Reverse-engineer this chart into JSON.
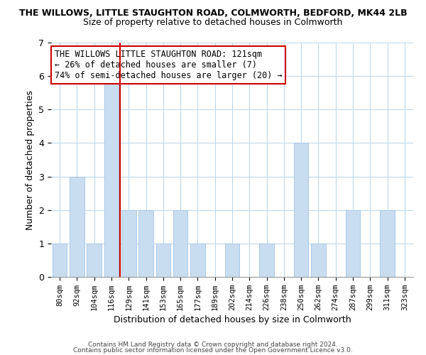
{
  "title_line1": "THE WILLOWS, LITTLE STAUGHTON ROAD, COLMWORTH, BEDFORD, MK44 2LB",
  "title_line2": "Size of property relative to detached houses in Colmworth",
  "xlabel": "Distribution of detached houses by size in Colmworth",
  "ylabel": "Number of detached properties",
  "bar_labels": [
    "80sqm",
    "92sqm",
    "104sqm",
    "116sqm",
    "129sqm",
    "141sqm",
    "153sqm",
    "165sqm",
    "177sqm",
    "189sqm",
    "202sqm",
    "214sqm",
    "226sqm",
    "238sqm",
    "250sqm",
    "262sqm",
    "274sqm",
    "287sqm",
    "299sqm",
    "311sqm",
    "323sqm"
  ],
  "bar_values": [
    1,
    3,
    1,
    6,
    2,
    2,
    1,
    2,
    1,
    0,
    1,
    0,
    1,
    0,
    4,
    1,
    0,
    2,
    0,
    2,
    0
  ],
  "bar_color": "#c9ddf0",
  "bar_edge_color": "#a8c8e8",
  "vline_x": 3.5,
  "vline_color": "#cc0000",
  "annotation_title": "THE WILLOWS LITTLE STAUGHTON ROAD: 121sqm",
  "annotation_line2": "← 26% of detached houses are smaller (7)",
  "annotation_line3": "74% of semi-detached houses are larger (20) →",
  "annotation_box_color": "#ffffff",
  "annotation_box_edge": "#cc0000",
  "ylim": [
    0,
    7
  ],
  "yticks": [
    0,
    1,
    2,
    3,
    4,
    5,
    6,
    7
  ],
  "footnote1": "Contains HM Land Registry data © Crown copyright and database right 2024.",
  "footnote2": "Contains public sector information licensed under the Open Government Licence v3.0.",
  "bg_color": "#ffffff",
  "grid_color": "#c0d8e8",
  "title_fontsize": 9,
  "subtitle_fontsize": 9,
  "xlabel_fontsize": 9,
  "ylabel_fontsize": 9
}
